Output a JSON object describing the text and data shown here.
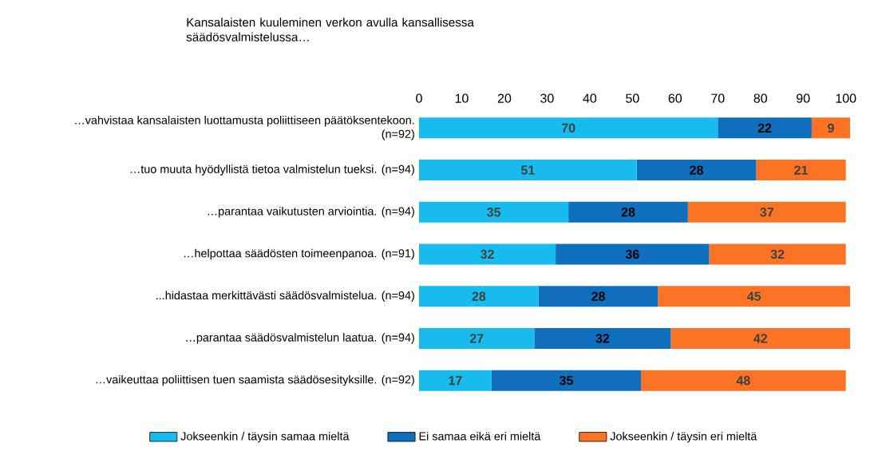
{
  "chart_data": {
    "type": "bar",
    "orientation": "horizontal",
    "stacked": true,
    "title": "Kansalaisten kuuleminen verkon avulla kansallisessa säädösvalmistelussa…",
    "categories": [
      "…vahvistaa kansalaisten luottamusta poliittiseen päätöksentekoon. (n=92)",
      "…tuo muuta hyödyllistä tietoa valmistelun tueksi. (n=94)",
      "…parantaa vaikutusten arviointia. (n=94)",
      "…helpottaa säädösten toimeenpanoa. (n=91)",
      "...hidastaa merkittävästi säädösvalmistelua. (n=94)",
      "…parantaa säädösvalmistelun laatua. (n=94)",
      "…vaikeuttaa poliittisen tuen saamista säädösesityksille. (n=92)"
    ],
    "series": [
      {
        "name": "Jokseenkin / täysin samaa mieltä",
        "color": "#17bbee",
        "values": [
          70,
          51,
          35,
          32,
          28,
          27,
          17
        ]
      },
      {
        "name": "Ei samaa eikä eri mieltä",
        "color": "#0f6fbd",
        "values": [
          22,
          28,
          28,
          36,
          28,
          32,
          35
        ]
      },
      {
        "name": "Jokseenkin / täysin eri mieltä",
        "color": "#fb7425",
        "values": [
          9,
          21,
          37,
          32,
          45,
          42,
          48
        ]
      }
    ],
    "xlim": [
      0,
      101
    ],
    "xticks": [
      0,
      10,
      20,
      30,
      40,
      50,
      60,
      70,
      80,
      90,
      100
    ],
    "data_labels": true,
    "legend": "bottom",
    "grid": false
  }
}
